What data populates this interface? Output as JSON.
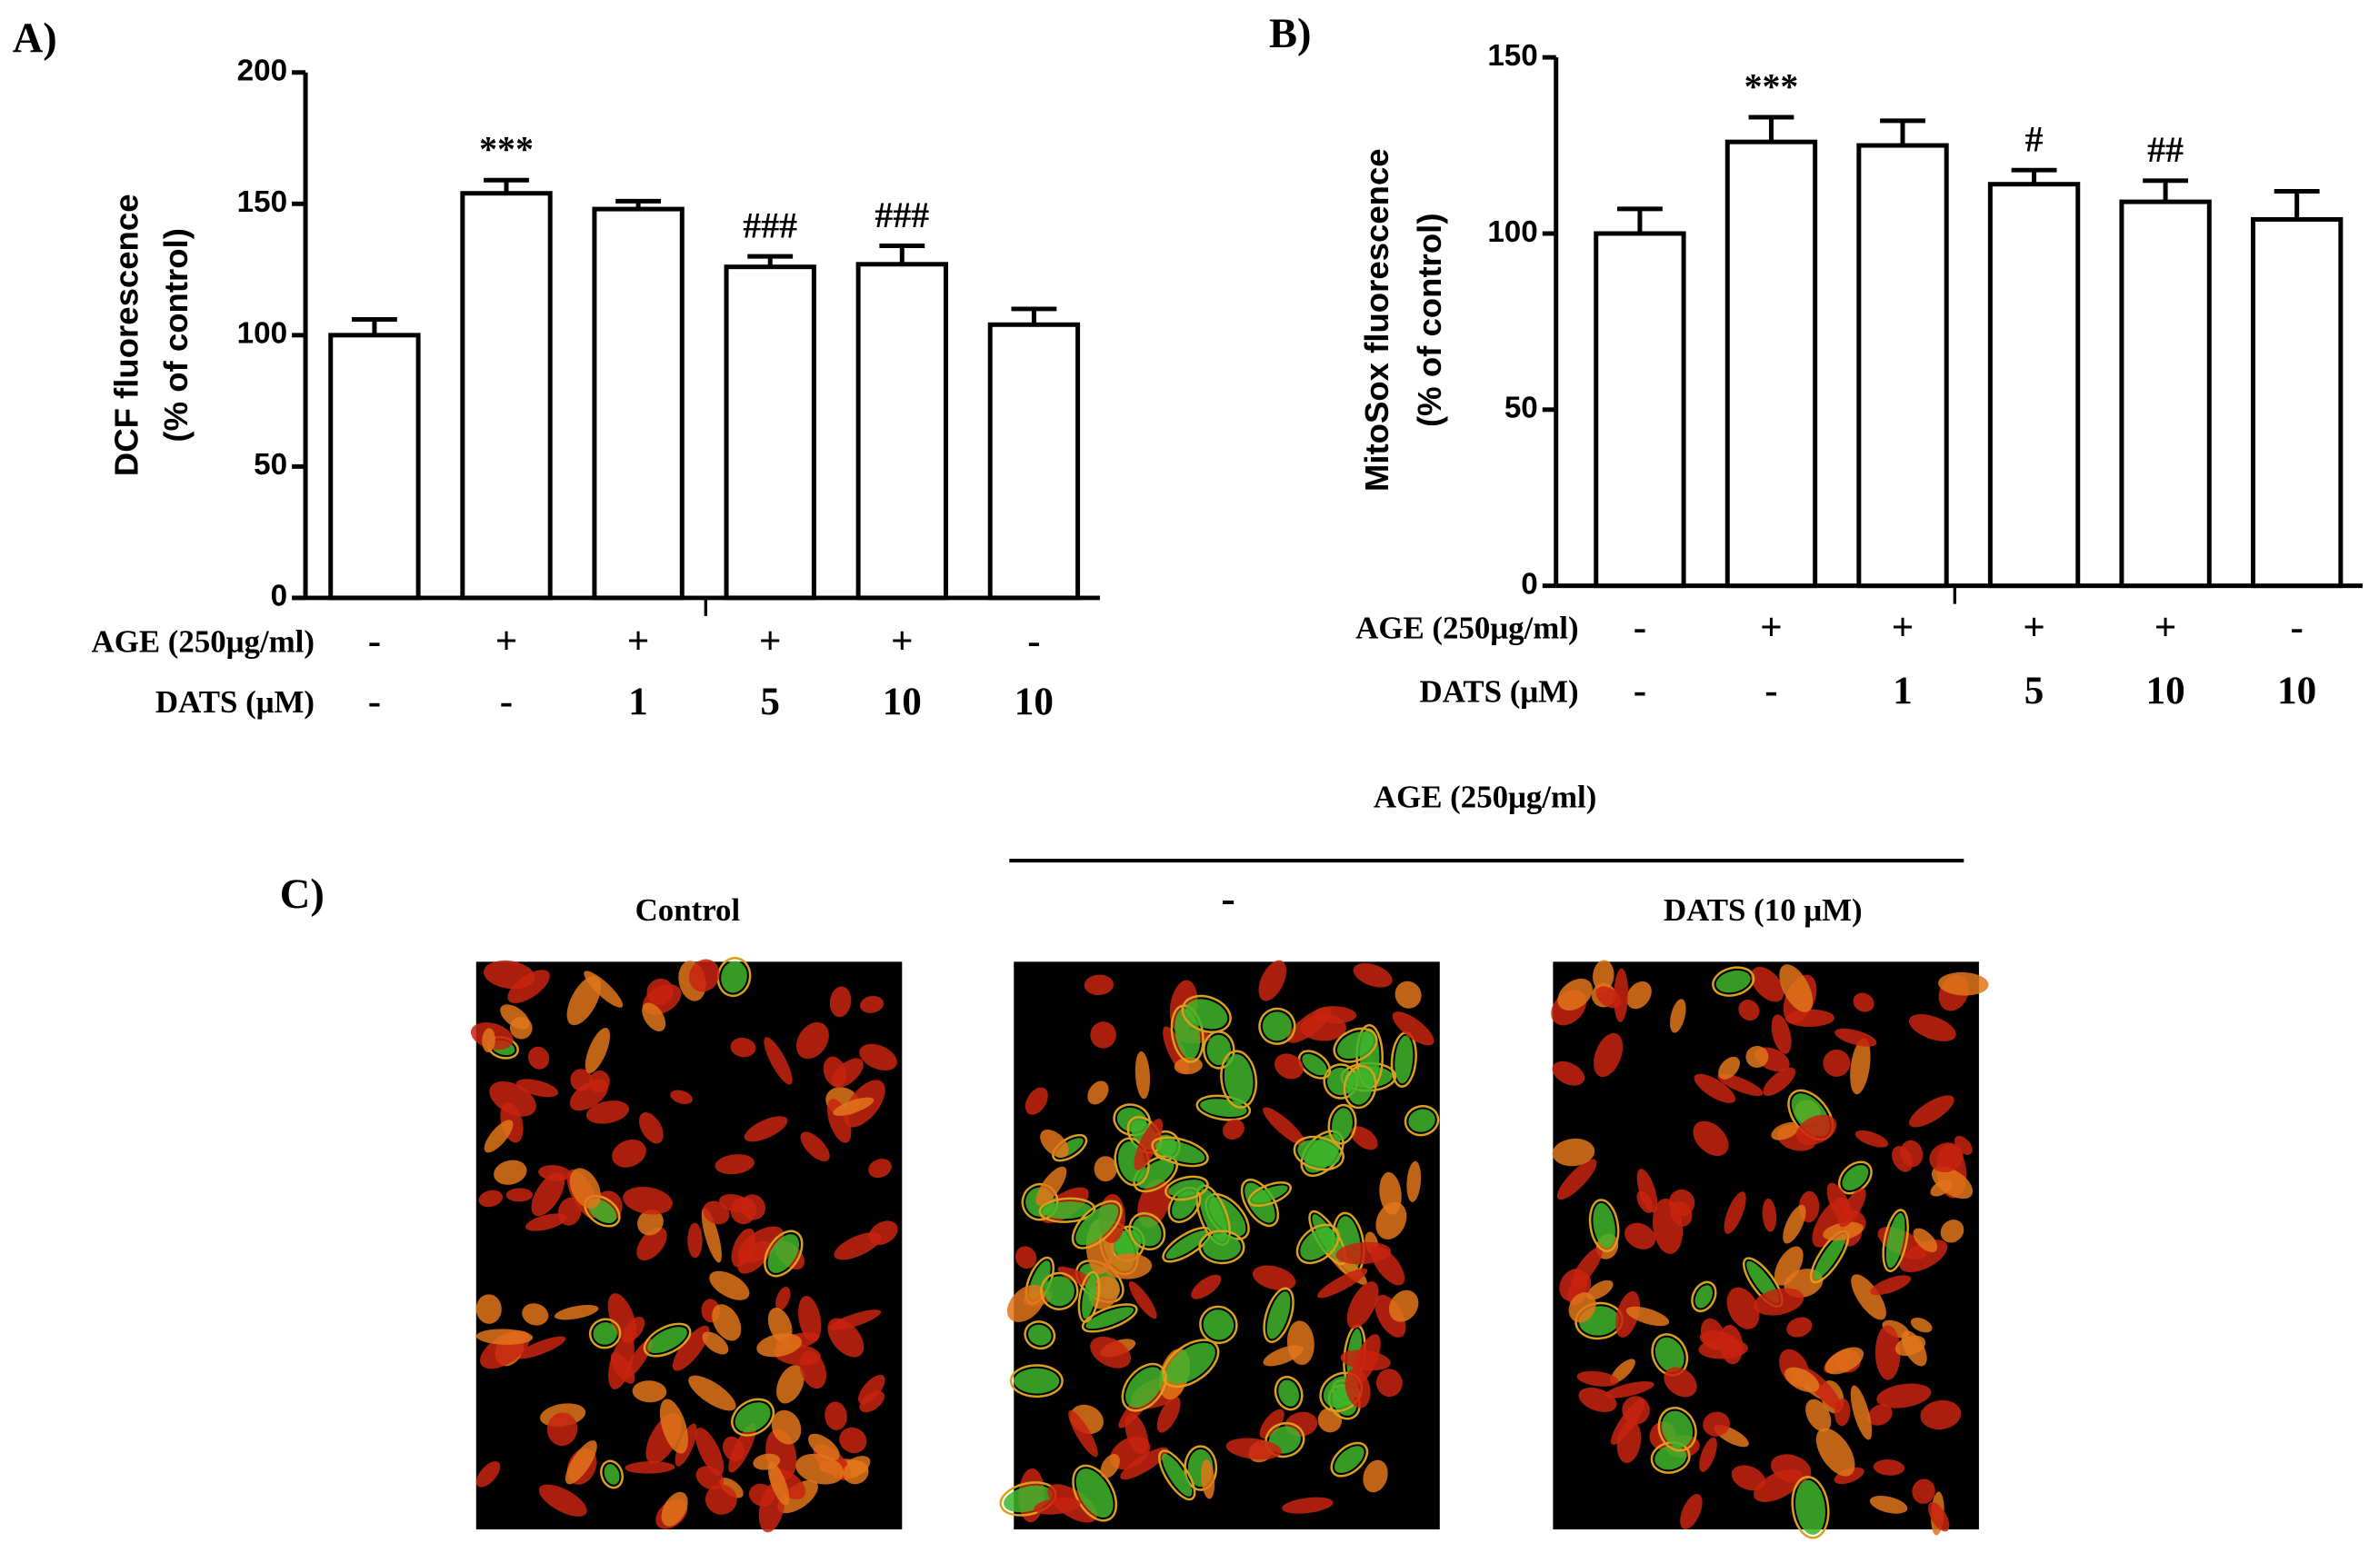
{
  "chart_data": [
    {
      "type": "bar",
      "panel": "A)",
      "y_label": [
        "DCF fluorescence",
        "(% of control)"
      ],
      "values": [
        100,
        154,
        148,
        126,
        127,
        104
      ],
      "errors": [
        6,
        5,
        3,
        4,
        7,
        6
      ],
      "bar_labels": [
        null,
        "***",
        null,
        "###",
        "###",
        null
      ],
      "ylim": [
        0,
        200
      ],
      "yticks": [
        0,
        50,
        100,
        150,
        200
      ],
      "color": "#ffffff",
      "rows": [
        {
          "label": "AGE (250μg/ml)",
          "cells": [
            "-",
            "+",
            "+",
            "+",
            "+",
            "-"
          ]
        },
        {
          "label": "DATS (μM)",
          "cells": [
            "-",
            "-",
            "1",
            "5",
            "10",
            "10"
          ]
        }
      ]
    },
    {
      "type": "bar",
      "panel": "B)",
      "y_label": [
        "MitoSox fluorescence",
        "(% of control)"
      ],
      "values": [
        100,
        126,
        125,
        114,
        109,
        104
      ],
      "errors": [
        7,
        7,
        7,
        4,
        6,
        8
      ],
      "bar_labels": [
        null,
        "***",
        null,
        "#",
        "##",
        null
      ],
      "ylim": [
        0,
        150
      ],
      "yticks": [
        0,
        50,
        100,
        150
      ],
      "color": "#ffffff",
      "rows": [
        {
          "label": "AGE (250μg/ml)",
          "cells": [
            "-",
            "+",
            "+",
            "+",
            "+",
            "-"
          ]
        },
        {
          "label": "DATS (μM)",
          "cells": [
            "-",
            "-",
            "1",
            "5",
            "10",
            "10"
          ]
        }
      ]
    }
  ],
  "panel_c": {
    "label": "C)",
    "group": "AGE (250μg/ml)",
    "images": [
      "Control",
      "-",
      "DATS (10 μM)"
    ]
  }
}
